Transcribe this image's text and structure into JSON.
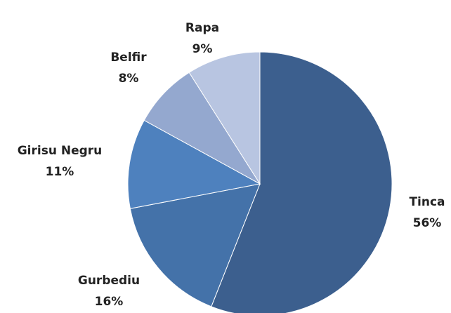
{
  "chart_data": {
    "type": "pie",
    "categories": [
      "Tinca",
      "Gurbediu",
      "Girisu Negru",
      "Belfir",
      "Rapa"
    ],
    "values": [
      56,
      16,
      11,
      8,
      9
    ],
    "value_labels": [
      "56%",
      "16%",
      "11%",
      "8%",
      "9%"
    ],
    "colors": [
      "#3c5f8e",
      "#4472a9",
      "#4e81be",
      "#94a8cf",
      "#b8c5e1"
    ]
  }
}
